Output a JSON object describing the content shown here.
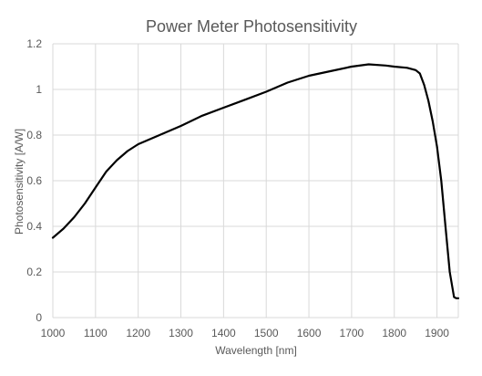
{
  "chart_data": {
    "type": "line",
    "title": "Power Meter Photosensitivity",
    "xlabel": "Wavelength [nm]",
    "ylabel": "Photosensitivity [A/W]",
    "xlim": [
      1000,
      1950
    ],
    "ylim": [
      0,
      1.2
    ],
    "grid": true,
    "legend": "none",
    "x_ticks": [
      1000,
      1100,
      1200,
      1300,
      1400,
      1500,
      1600,
      1700,
      1800,
      1900
    ],
    "x_tick_labels": [
      "1000",
      "1100",
      "1200",
      "1300",
      "1400",
      "1500",
      "1600",
      "1700",
      "1800",
      "1900"
    ],
    "y_ticks": [
      0,
      0.2,
      0.4,
      0.6,
      0.8,
      1.0,
      1.2
    ],
    "y_tick_labels": [
      "0",
      "0.2",
      "0.4",
      "0.6",
      "0.8",
      "1",
      "1.2"
    ],
    "colors": {
      "line": "#000000",
      "grid": "#d9d9d9",
      "text": "#595959"
    },
    "series": [
      {
        "x": [
          1000,
          1025,
          1050,
          1075,
          1100,
          1125,
          1150,
          1175,
          1200,
          1250,
          1300,
          1350,
          1400,
          1450,
          1500,
          1550,
          1600,
          1650,
          1700,
          1740,
          1780,
          1800,
          1830,
          1850,
          1860,
          1870,
          1880,
          1890,
          1900,
          1910,
          1920,
          1930,
          1940,
          1945,
          1950
        ],
        "y": [
          0.35,
          0.39,
          0.44,
          0.5,
          0.57,
          0.64,
          0.69,
          0.73,
          0.76,
          0.8,
          0.84,
          0.885,
          0.92,
          0.955,
          0.99,
          1.03,
          1.06,
          1.08,
          1.1,
          1.11,
          1.105,
          1.1,
          1.095,
          1.085,
          1.07,
          1.02,
          0.95,
          0.86,
          0.75,
          0.6,
          0.4,
          0.2,
          0.09,
          0.085,
          0.085
        ]
      }
    ]
  }
}
